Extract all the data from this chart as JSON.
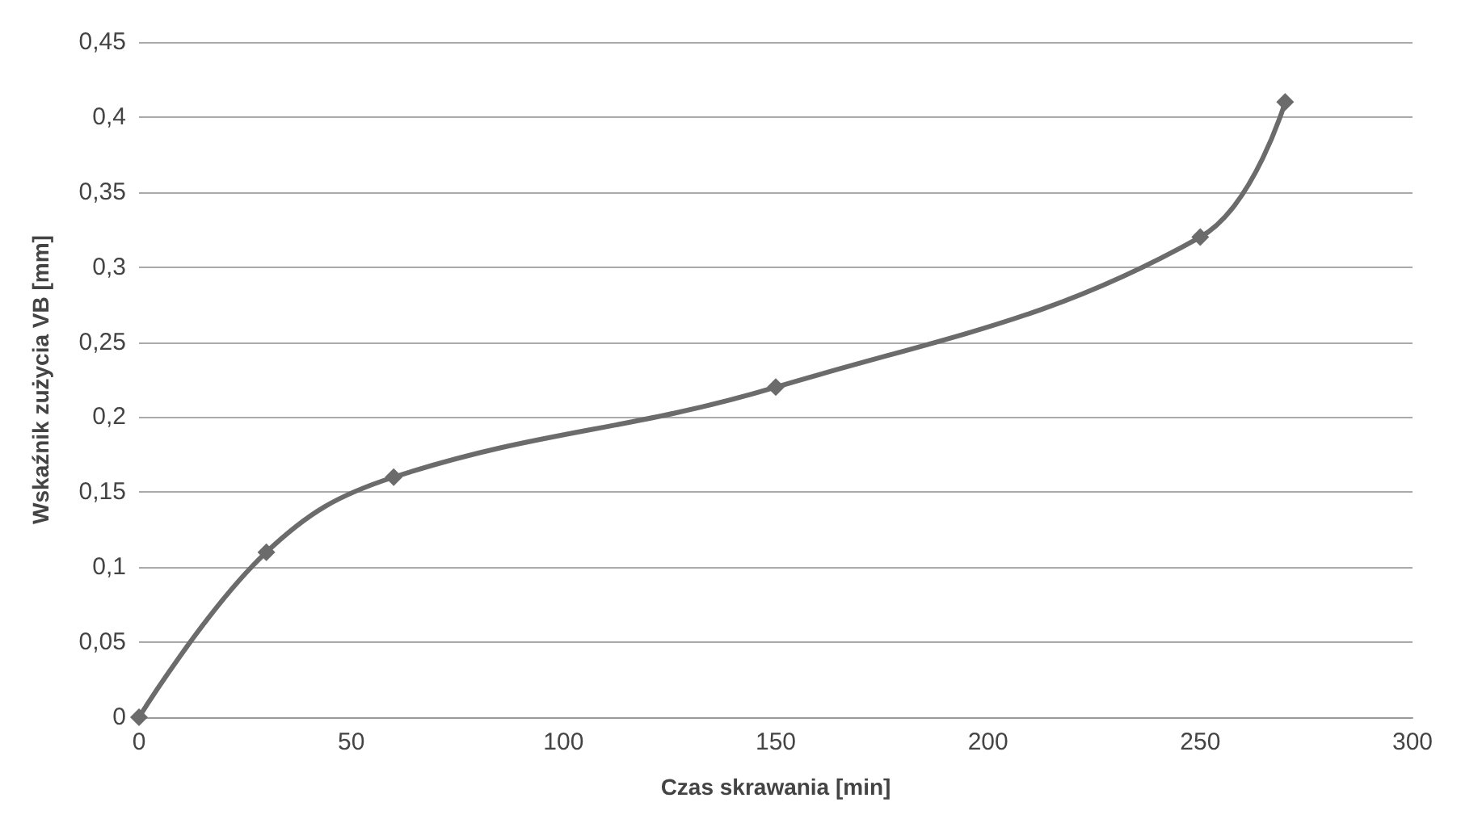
{
  "chart_data": {
    "type": "line",
    "xlabel": "Czas skrawania [min]",
    "ylabel": "Wskaźnik zużycia VB [mm]",
    "x": [
      0,
      30,
      60,
      150,
      250,
      270
    ],
    "series": [
      {
        "color": "#6b6b6b",
        "values": [
          0,
          0.11,
          0.16,
          0.22,
          0.32,
          0.41
        ]
      }
    ],
    "xlim": [
      0,
      300
    ],
    "xticks": [
      0,
      50,
      100,
      150,
      200,
      250,
      300
    ],
    "ylim": [
      0,
      0.45
    ],
    "yticks": [
      0,
      {
        "value": 0.05,
        "label": "0,05"
      },
      {
        "value": 0.1,
        "label": "0,1"
      },
      {
        "value": 0.15,
        "label": "0,15"
      },
      {
        "value": 0.2,
        "label": "0,2"
      },
      {
        "value": 0.25,
        "label": "0,25"
      },
      {
        "value": 0.3,
        "label": "0,3"
      },
      {
        "value": 0.35,
        "label": "0,35"
      },
      {
        "value": 0.4,
        "label": "0,4"
      },
      {
        "value": 0.45,
        "label": "0,45"
      }
    ],
    "grid": "y",
    "marker": "diamond",
    "line_style": "solid"
  }
}
